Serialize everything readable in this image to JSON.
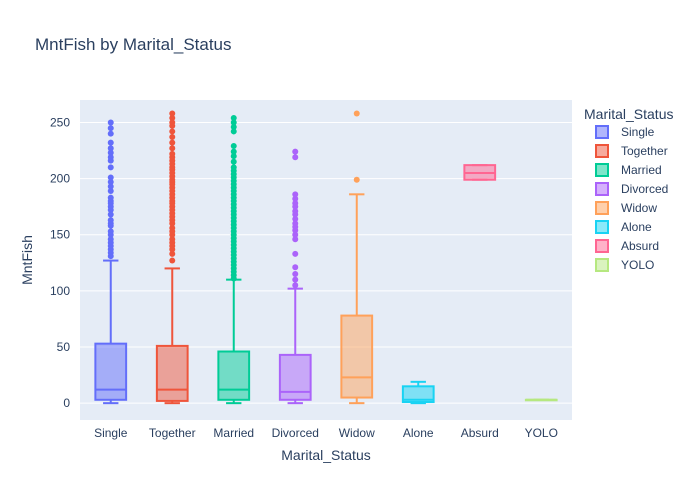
{
  "chart_data": {
    "type": "box",
    "title": "MntFish by Marital_Status",
    "xlabel": "Marital_Status",
    "ylabel": "MntFish",
    "ylim": [
      -15,
      270
    ],
    "yticks": [
      0,
      50,
      100,
      150,
      200,
      250
    ],
    "grid": true,
    "legend": {
      "title": "Marital_Status",
      "placement": "right",
      "entries": [
        "Single",
        "Together",
        "Married",
        "Divorced",
        "Widow",
        "Alone",
        "Absurd",
        "YOLO"
      ]
    },
    "categories": [
      "Single",
      "Together",
      "Married",
      "Divorced",
      "Widow",
      "Alone",
      "Absurd",
      "YOLO"
    ],
    "series": [
      {
        "name": "Single",
        "color": "#636efa",
        "q1": 3,
        "median": 12,
        "q3": 53,
        "lower_fence": 0,
        "upper_fence": 127,
        "outliers": [
          131,
          134,
          137,
          140,
          143,
          146,
          150,
          153,
          158,
          160,
          163,
          168,
          172,
          175,
          178,
          180,
          183,
          189,
          193,
          197,
          201,
          210,
          216,
          219,
          223,
          227,
          232,
          240,
          245,
          250
        ]
      },
      {
        "name": "Together",
        "color": "#ef553b",
        "q1": 2,
        "median": 12,
        "q3": 51,
        "lower_fence": 0,
        "upper_fence": 120,
        "outliers": [
          127,
          133,
          137,
          140,
          143,
          146,
          150,
          153,
          156,
          160,
          163,
          166,
          169,
          172,
          175,
          178,
          180,
          183,
          186,
          189,
          192,
          195,
          197,
          199,
          202,
          205,
          208,
          210,
          213,
          216,
          219,
          222,
          227,
          232,
          237,
          242,
          247,
          250,
          254,
          258
        ]
      },
      {
        "name": "Married",
        "color": "#00cc96",
        "q1": 3,
        "median": 12,
        "q3": 46,
        "lower_fence": 0,
        "upper_fence": 110,
        "outliers": [
          111,
          114,
          117,
          120,
          123,
          126,
          129,
          132,
          135,
          138,
          141,
          144,
          147,
          150,
          153,
          156,
          159,
          162,
          165,
          168,
          171,
          174,
          177,
          180,
          183,
          186,
          189,
          192,
          195,
          198,
          201,
          204,
          207,
          210,
          215,
          220,
          224,
          229,
          242,
          246,
          250,
          254
        ]
      },
      {
        "name": "Divorced",
        "color": "#ab63fa",
        "q1": 3,
        "median": 10,
        "q3": 43,
        "lower_fence": 0,
        "upper_fence": 102,
        "outliers": [
          105,
          110,
          115,
          121,
          133,
          146,
          150,
          154,
          157,
          160,
          164,
          168,
          171,
          175,
          178,
          182,
          186,
          219,
          224
        ]
      },
      {
        "name": "Widow",
        "color": "#ffa15a",
        "q1": 5,
        "median": 23,
        "q3": 78,
        "lower_fence": 0,
        "upper_fence": 186,
        "outliers": [
          199,
          258
        ]
      },
      {
        "name": "Alone",
        "color": "#19d3f3",
        "q1": 1,
        "median": 3,
        "q3": 15,
        "lower_fence": 0,
        "upper_fence": 19,
        "outliers": []
      },
      {
        "name": "Absurd",
        "color": "#ff6692",
        "q1": 199,
        "median": 205,
        "q3": 212,
        "lower_fence": 199,
        "upper_fence": 212,
        "outliers": []
      },
      {
        "name": "YOLO",
        "color": "#b6e880",
        "q1": 3,
        "median": 3,
        "q3": 3,
        "lower_fence": 3,
        "upper_fence": 3,
        "outliers": []
      }
    ]
  }
}
